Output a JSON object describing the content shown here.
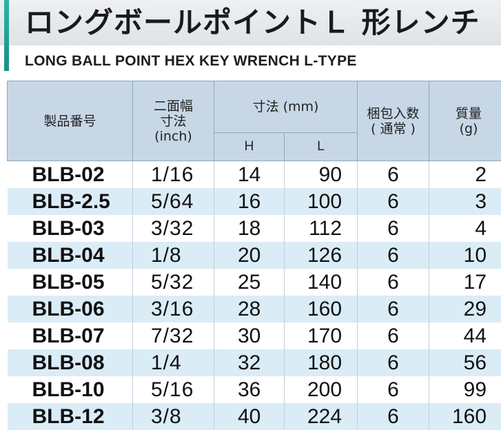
{
  "title": "ロングボールポイントＬ 形レンチ",
  "subtitle": "LONG BALL POINT HEX KEY WRENCH L-TYPE",
  "table": {
    "headers": {
      "model": "製品番号",
      "width_line1": "二面幅",
      "width_line2": "寸法",
      "width_line3": "(inch)",
      "dimension": "寸法 (mm)",
      "h": "H",
      "l": "L",
      "pack_line1": "梱包入数",
      "pack_line2": "( 通常 )",
      "mass_line1": "質量",
      "mass_line2": "(g)"
    },
    "rows": [
      {
        "model": "BLB-02",
        "inch": "1/16",
        "h": "14",
        "l": "90",
        "pack": "6",
        "mass": "2"
      },
      {
        "model": "BLB-2.5",
        "inch": "5/64",
        "h": "16",
        "l": "100",
        "pack": "6",
        "mass": "3"
      },
      {
        "model": "BLB-03",
        "inch": "3/32",
        "h": "18",
        "l": "112",
        "pack": "6",
        "mass": "4"
      },
      {
        "model": "BLB-04",
        "inch": "1/8",
        "h": "20",
        "l": "126",
        "pack": "6",
        "mass": "10"
      },
      {
        "model": "BLB-05",
        "inch": "5/32",
        "h": "25",
        "l": "140",
        "pack": "6",
        "mass": "17"
      },
      {
        "model": "BLB-06",
        "inch": "3/16",
        "h": "28",
        "l": "160",
        "pack": "6",
        "mass": "29"
      },
      {
        "model": "BLB-07",
        "inch": "7/32",
        "h": "30",
        "l": "170",
        "pack": "6",
        "mass": "44"
      },
      {
        "model": "BLB-08",
        "inch": "1/4",
        "h": "32",
        "l": "180",
        "pack": "6",
        "mass": "56"
      },
      {
        "model": "BLB-10",
        "inch": "5/16",
        "h": "36",
        "l": "200",
        "pack": "6",
        "mass": "99"
      },
      {
        "model": "BLB-12",
        "inch": "3/8",
        "h": "40",
        "l": "224",
        "pack": "6",
        "mass": "160"
      }
    ]
  },
  "colors": {
    "accent": "#1b8f86",
    "header_bg": "#c7d7e6",
    "stripe_bg": "#daecf6",
    "text": "#111111"
  }
}
